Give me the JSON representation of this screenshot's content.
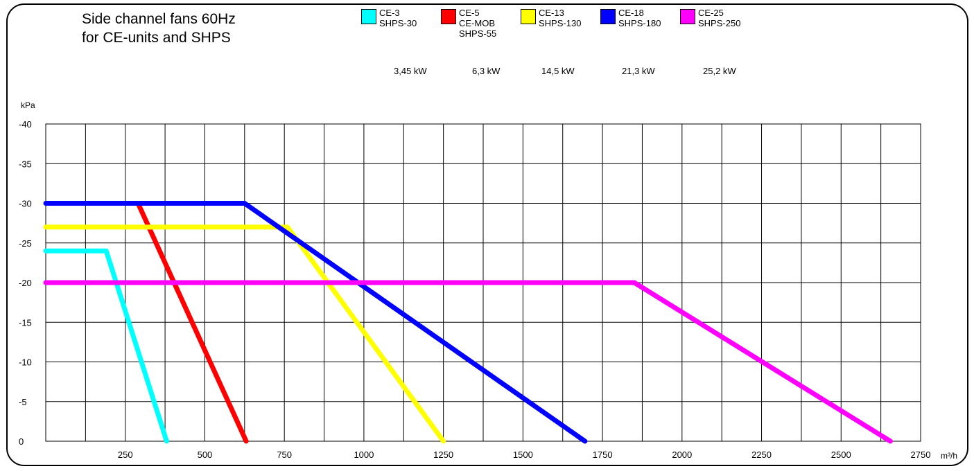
{
  "chart_data": {
    "type": "line",
    "title_lines": [
      "Side channel fans 60Hz",
      "for CE-units and SHPS"
    ],
    "ylabel": "kPa",
    "xlabel": "m³/h",
    "xlim": [
      0,
      2750
    ],
    "ylim": [
      0,
      -40
    ],
    "x_ticks": [
      250,
      500,
      750,
      1000,
      1250,
      1500,
      1750,
      2000,
      2250,
      2500,
      2750
    ],
    "x_tick_labels": [
      "250",
      "500",
      "750",
      "1000",
      "1250",
      "1500",
      "1750",
      "2000",
      "2250",
      "2500",
      "2750"
    ],
    "y_ticks": [
      0,
      -5,
      -10,
      -15,
      -20,
      -25,
      -30,
      -35,
      -40
    ],
    "y_tick_labels": [
      "0",
      "-5",
      "-10",
      "-15",
      "-20",
      "-25",
      "-30",
      "-35",
      "-40"
    ],
    "x_grid_step": 125,
    "grid": true,
    "legend_position": "top",
    "series": [
      {
        "name_lines": [
          "CE-3",
          "SHPS-30"
        ],
        "power": "3,45 kW",
        "color": "#00ffff",
        "points": [
          [
            0,
            -24
          ],
          [
            190,
            -24
          ],
          [
            380,
            0
          ]
        ]
      },
      {
        "name_lines": [
          "CE-5",
          "CE-MOB",
          "SHPS-55"
        ],
        "power": "6,3 kW",
        "color": "#ff0000",
        "points": [
          [
            290,
            -30
          ],
          [
            630,
            0
          ]
        ]
      },
      {
        "name_lines": [
          "CE-13",
          "SHPS-130"
        ],
        "power": "14,5 kW",
        "color": "#ffff00",
        "points": [
          [
            0,
            -27
          ],
          [
            760,
            -27
          ],
          [
            1250,
            0
          ]
        ]
      },
      {
        "name_lines": [
          "CE-18",
          "SHPS-180"
        ],
        "power": "21,3 kW",
        "color": "#0000ff",
        "points": [
          [
            0,
            -30
          ],
          [
            625,
            -30
          ],
          [
            1695,
            0
          ]
        ]
      },
      {
        "name_lines": [
          "CE-25",
          "SHPS-250"
        ],
        "power": "25,2 kW",
        "color": "#ff00ff",
        "points": [
          [
            0,
            -20
          ],
          [
            1850,
            -20
          ],
          [
            2655,
            0
          ]
        ]
      }
    ]
  }
}
